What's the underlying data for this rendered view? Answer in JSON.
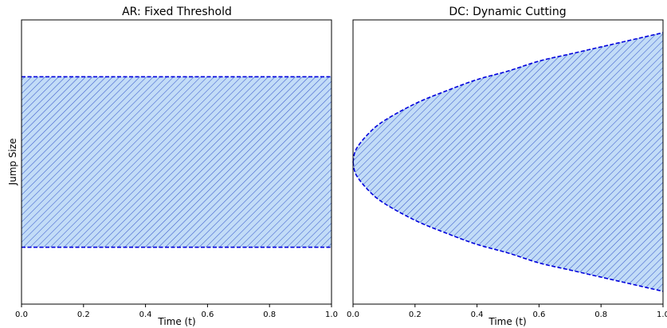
{
  "figure": {
    "ylabel": "Jump Size"
  },
  "chart_data": [
    {
      "type": "area",
      "title": "AR: Fixed Threshold",
      "xlabel": "Time (t)",
      "ylabel": "Jump Size",
      "xlim": [
        0.0,
        1.0
      ],
      "ylim": [
        -1.0,
        1.0
      ],
      "x_ticks": [
        "0.0",
        "0.2",
        "0.4",
        "0.6",
        "0.8",
        "1.0"
      ],
      "y_ticks_shown": false,
      "region": {
        "x": [
          0.0,
          0.2,
          0.4,
          0.6,
          0.8,
          1.0
        ],
        "upper": [
          0.6,
          0.6,
          0.6,
          0.6,
          0.6,
          0.6
        ],
        "lower": [
          -0.6,
          -0.6,
          -0.6,
          -0.6,
          -0.6,
          -0.6
        ]
      },
      "fill_color": "#c2dcf7",
      "hatch": "////",
      "hatch_color": "#3b5bcc",
      "boundary_color": "#0000dd",
      "boundary_style": "dashed",
      "grid": false
    },
    {
      "type": "area",
      "title": "DC: Dynamic Cutting",
      "xlabel": "Time (t)",
      "ylabel": "",
      "xlim": [
        0.0,
        1.0
      ],
      "ylim": [
        -1.0,
        1.0
      ],
      "x_ticks": [
        "0.0",
        "0.2",
        "0.4",
        "0.6",
        "0.8",
        "1.0"
      ],
      "y_ticks_shown": false,
      "region": {
        "x": [
          0.0,
          0.01,
          0.05,
          0.1,
          0.2,
          0.3,
          0.4,
          0.5,
          0.6,
          0.7,
          0.8,
          0.9,
          1.0
        ],
        "upper": [
          0.0,
          0.09,
          0.2,
          0.29,
          0.41,
          0.5,
          0.58,
          0.64,
          0.71,
          0.76,
          0.81,
          0.86,
          0.91
        ],
        "lower": [
          0.0,
          -0.09,
          -0.2,
          -0.29,
          -0.41,
          -0.5,
          -0.58,
          -0.64,
          -0.71,
          -0.76,
          -0.81,
          -0.86,
          -0.91
        ]
      },
      "fill_color": "#c2dcf7",
      "hatch": "////",
      "hatch_color": "#3b5bcc",
      "boundary_color": "#0000dd",
      "boundary_style": "dashed",
      "grid": false
    }
  ]
}
